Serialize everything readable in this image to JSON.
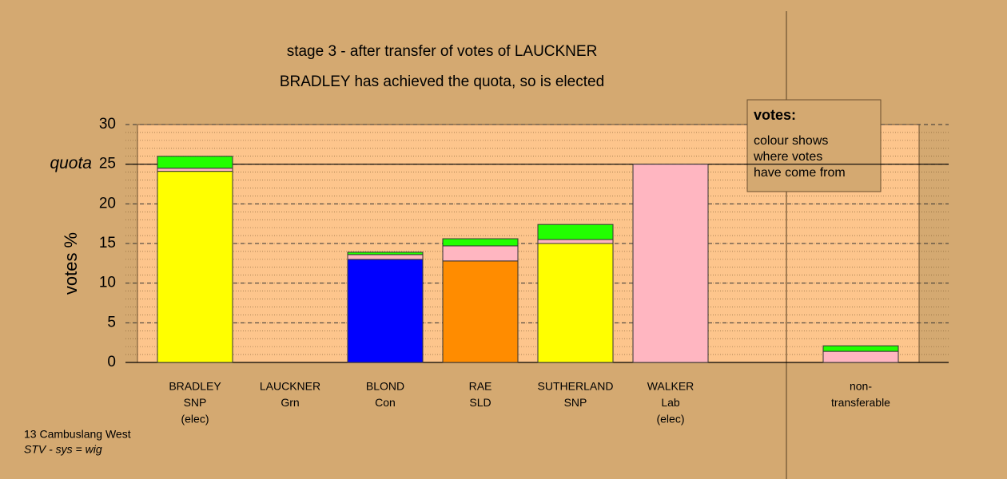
{
  "chart_data": {
    "type": "bar",
    "stacked": true,
    "title": "stage 3 - after transfer of votes of LAUCKNER",
    "subtitle": "BRADLEY has achieved the quota, so is elected",
    "ylabel": "votes %",
    "categories": [
      [
        "BRADLEY",
        "SNP",
        "(elec)"
      ],
      [
        "LAUCKNER",
        "Grn"
      ],
      [
        "BLOND",
        "Con"
      ],
      [
        "RAE",
        "SLD"
      ],
      [
        "SUTHERLAND",
        "SNP"
      ],
      [
        "WALKER",
        "Lab",
        "(elec)"
      ],
      [
        "non-",
        "transferable"
      ]
    ],
    "series": [
      {
        "color": "#ffff00",
        "values": [
          24.1,
          0,
          0,
          0,
          15.0,
          0,
          0
        ]
      },
      {
        "color": "#0000ff",
        "values": [
          0,
          0,
          13.0,
          0,
          0,
          0,
          0
        ]
      },
      {
        "color": "#ff8c00",
        "values": [
          0,
          0,
          0,
          12.8,
          0,
          0,
          0
        ]
      },
      {
        "color": "#ffb6c1",
        "values": [
          0.4,
          0,
          0.6,
          1.9,
          0.5,
          25.0,
          1.4
        ]
      },
      {
        "color": "#22ff00",
        "values": [
          1.5,
          0,
          0.3,
          0.9,
          1.9,
          0,
          0.7
        ]
      }
    ],
    "ylim": [
      0,
      30
    ],
    "yticks": [
      0,
      5,
      10,
      15,
      20,
      25,
      30
    ],
    "grid": true,
    "minor_grid_step": 1,
    "quota": {
      "value": 25,
      "label": "quota"
    },
    "legend": {
      "title": "votes:",
      "lines": [
        "colour shows",
        "where votes",
        "have come from"
      ]
    },
    "footer": [
      "13 Cambuslang West",
      "STV - sys = wig"
    ]
  }
}
